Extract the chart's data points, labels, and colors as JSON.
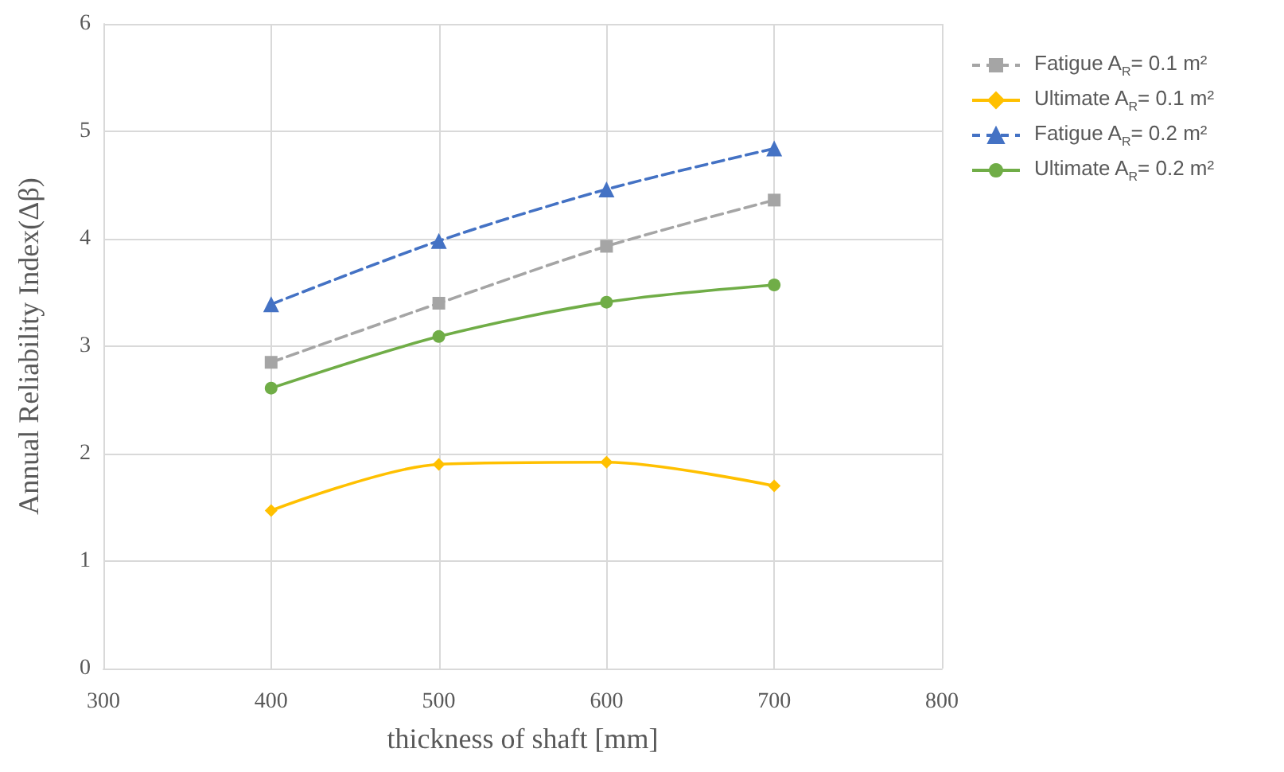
{
  "chart_data": {
    "type": "line",
    "xlabel": "thickness of shaft [mm]",
    "ylabel": "Annual Reliability Index(Δβ)",
    "xlim": [
      300,
      800
    ],
    "xticks": [
      300,
      400,
      500,
      600,
      700,
      800
    ],
    "ylim": [
      0,
      6
    ],
    "yticks": [
      0,
      1,
      2,
      3,
      4,
      5,
      6
    ],
    "grid": true,
    "legend": "right",
    "series": [
      {
        "name": "Fatigue A$_{R}$= 0.1 m²",
        "color": "#a5a5a5",
        "marker": "square",
        "line_style": "dashed",
        "x": [
          400,
          500,
          600,
          700
        ],
        "values": [
          2.85,
          3.4,
          3.93,
          4.36
        ]
      },
      {
        "name": "Ultimate A$_{R}$= 0.1 m²",
        "color": "#ffc000",
        "marker": "diamond",
        "line_style": "solid",
        "x": [
          400,
          500,
          600,
          700
        ],
        "values": [
          1.47,
          1.9,
          1.92,
          1.7
        ]
      },
      {
        "name": "Fatigue A$_{R}$= 0.2 m²",
        "color": "#4472c4",
        "marker": "triangle",
        "line_style": "dashed",
        "x": [
          400,
          500,
          600,
          700
        ],
        "values": [
          3.39,
          3.98,
          4.46,
          4.84
        ]
      },
      {
        "name": "Ultimate A$_{R}$= 0.2 m²",
        "color": "#70ad47",
        "marker": "circle",
        "line_style": "solid",
        "x": [
          400,
          500,
          600,
          700
        ],
        "values": [
          2.61,
          3.09,
          3.41,
          3.57
        ]
      }
    ]
  }
}
